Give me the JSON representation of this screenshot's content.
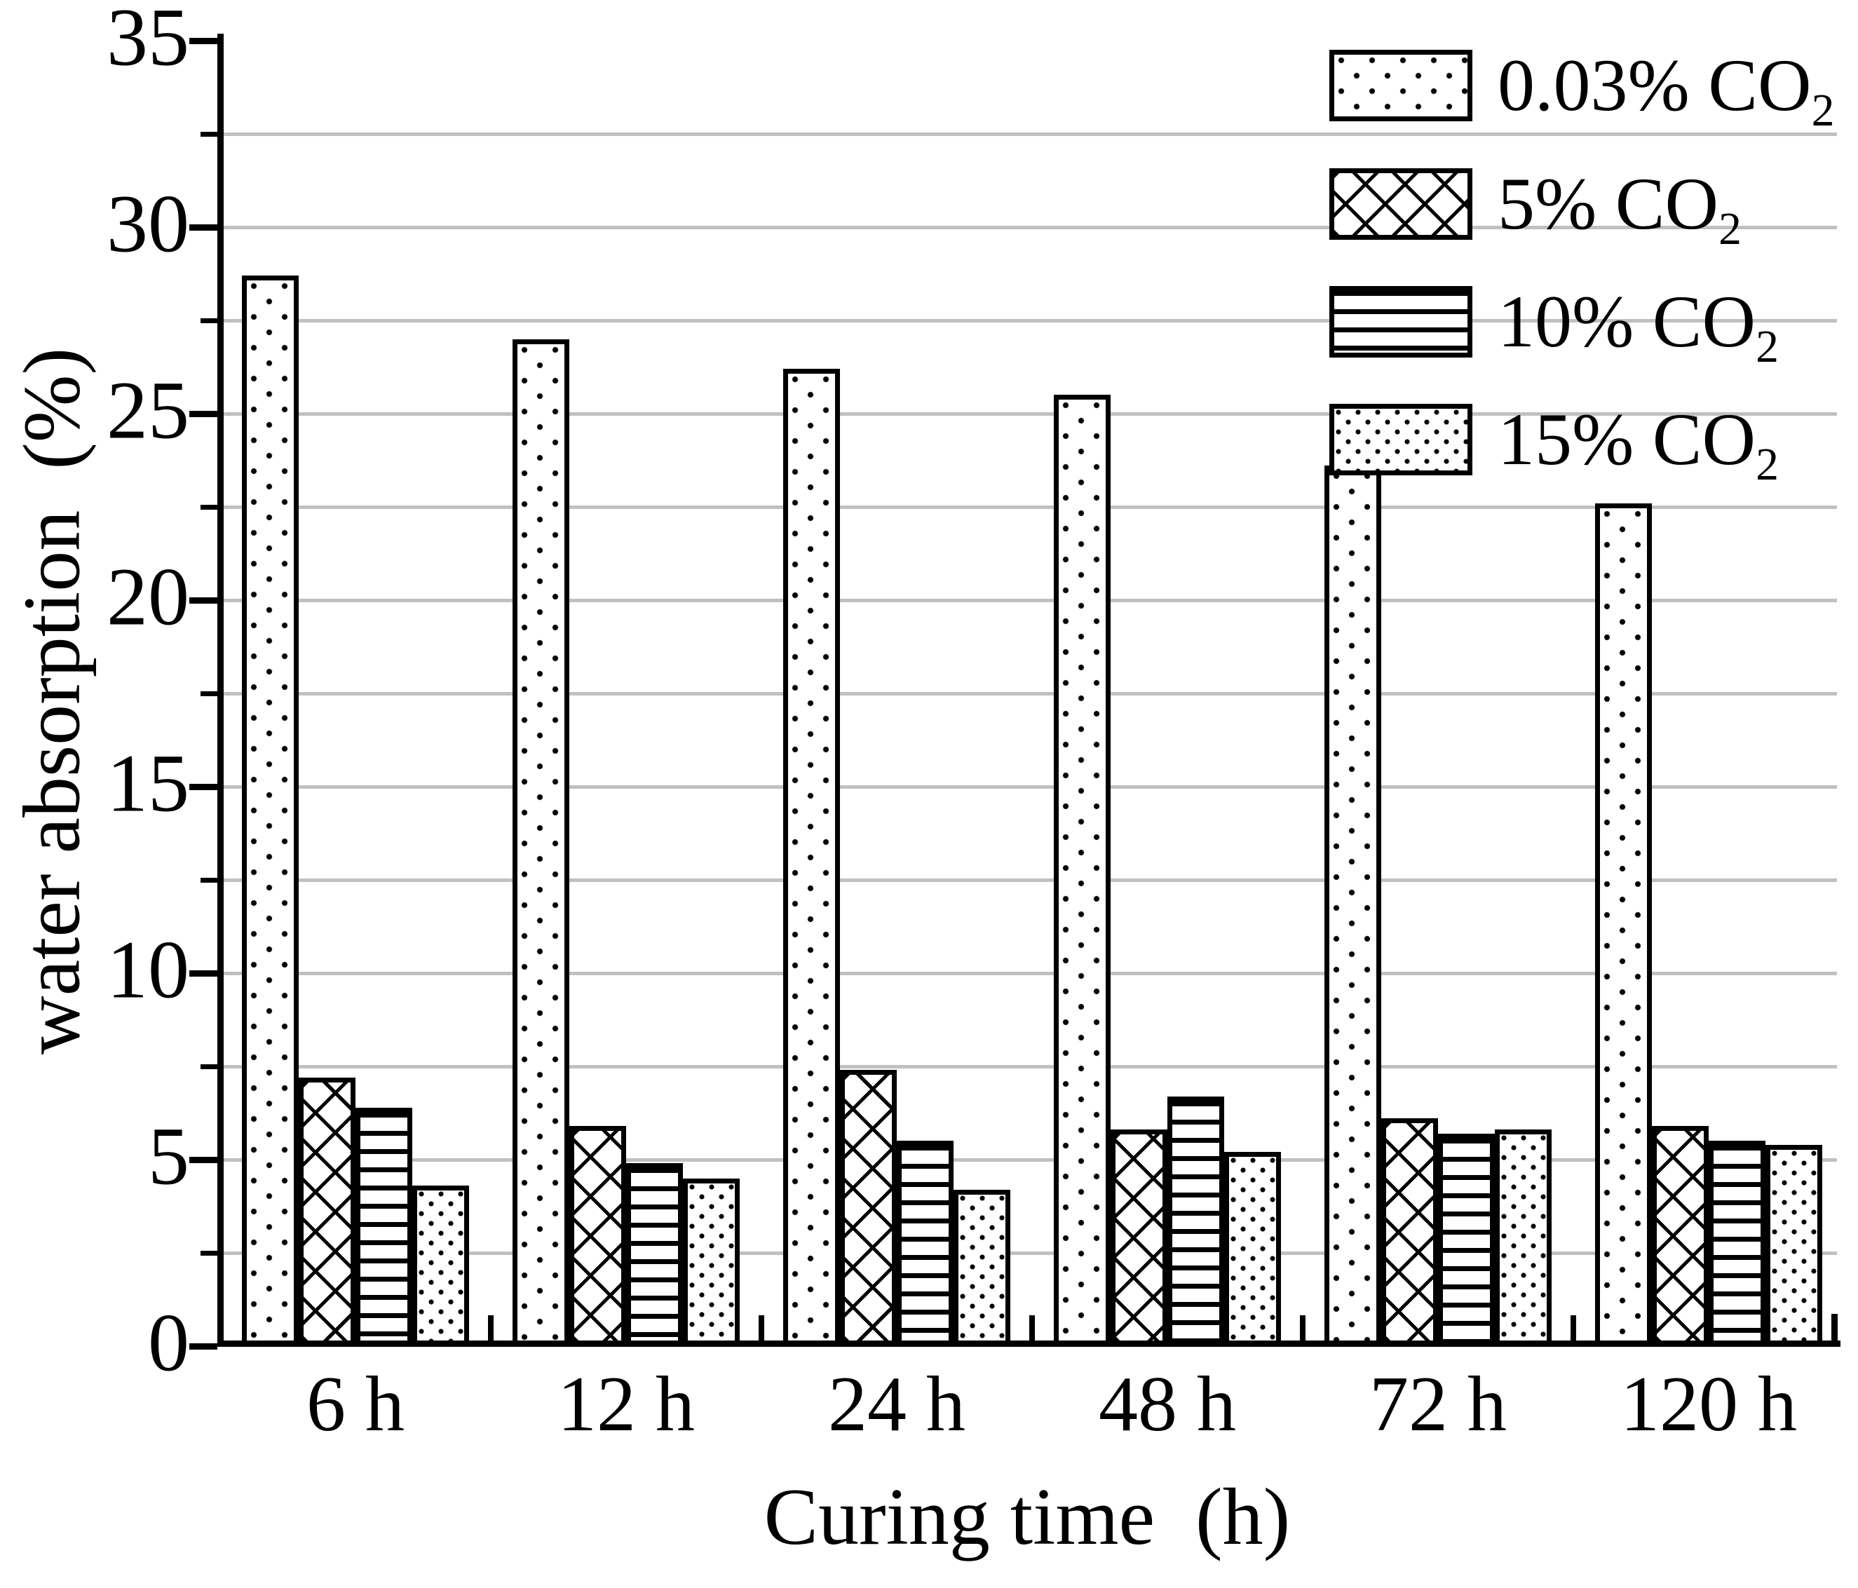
{
  "axes": {
    "y_label": "water absorption  (%)",
    "x_label": "Curing time  (h)",
    "y_ticks": [
      0,
      5,
      10,
      15,
      20,
      25,
      30,
      35
    ],
    "y_minor_step": 2.5,
    "y_max": 35
  },
  "colors": {
    "gridline": "#c0c0c0",
    "axis": "#000000",
    "bar_fill": "#ffffff",
    "bar_border": "#000000"
  },
  "legend": {
    "items": [
      {
        "prefix": "0.03% CO",
        "sub": "2",
        "pattern": "dots-sparse"
      },
      {
        "prefix": "5% CO",
        "sub": "2",
        "pattern": "crosshatch"
      },
      {
        "prefix": "10% CO",
        "sub": "2",
        "pattern": "hlines"
      },
      {
        "prefix": "15% CO",
        "sub": "2",
        "pattern": "dots-dense"
      }
    ]
  },
  "chart_data": {
    "type": "bar",
    "title": "",
    "xlabel": "Curing time (h)",
    "ylabel": "water absorption (%)",
    "ylim": [
      0,
      35
    ],
    "grid": true,
    "gridline_step": 2.5,
    "legend_position": "upper-right",
    "categories": [
      "6 h",
      "12 h",
      "24 h",
      "48 h",
      "72 h",
      "120 h"
    ],
    "series": [
      {
        "name": "0.03% CO2",
        "pattern": "dots-sparse",
        "values": [
          28.7,
          27.0,
          26.2,
          25.5,
          23.6,
          22.6
        ]
      },
      {
        "name": "5% CO2",
        "pattern": "crosshatch",
        "values": [
          7.2,
          5.9,
          7.4,
          5.8,
          6.1,
          5.9
        ]
      },
      {
        "name": "10% CO2",
        "pattern": "hlines",
        "values": [
          6.4,
          4.9,
          5.5,
          6.7,
          5.7,
          5.5
        ]
      },
      {
        "name": "15% CO2",
        "pattern": "dots-dense",
        "values": [
          4.3,
          4.5,
          4.2,
          5.2,
          5.8,
          5.4
        ]
      }
    ]
  }
}
